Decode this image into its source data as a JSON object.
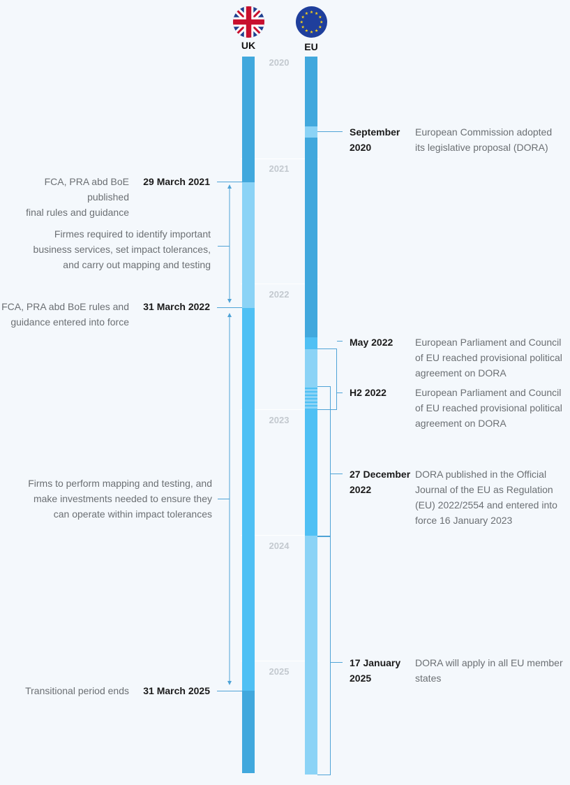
{
  "flags": {
    "uk": {
      "label": "UK",
      "icon": "uk-flag-icon"
    },
    "eu": {
      "label": "EU",
      "icon": "eu-flag-icon"
    }
  },
  "colors": {
    "bar_dark": "#41a8dd",
    "bar_mid": "#4fc0f4",
    "bar_light": "#8bd3f6",
    "connector": "#4fa3d6",
    "text_gray": "#6b6f73",
    "year_gray": "#c3c9cf"
  },
  "years": [
    "2020",
    "2021",
    "2022",
    "2023",
    "2024",
    "2025"
  ],
  "uk_events": [
    {
      "date": "29 March 2021",
      "lines": [
        "FCA, PRA abd BoE published",
        "final rules and guidance"
      ]
    },
    {
      "date": "",
      "lines": [
        "Firmes required to identify important",
        "business services, set impact tolerances,",
        "and carry out mapping and testing"
      ]
    },
    {
      "date": "31 March 2022",
      "lines": [
        "FCA, PRA abd BoE rules and",
        "guidance entered into force"
      ]
    },
    {
      "date": "",
      "lines": [
        "Firms to perform mapping and testing, and",
        "make investments needed to ensure they",
        "can operate within impact tolerances"
      ]
    },
    {
      "date": "31 March 2025",
      "lines": [
        "Transitional period ends"
      ]
    }
  ],
  "eu_events": [
    {
      "date_lines": [
        "September",
        "2020"
      ],
      "lines": [
        "European Commission adopted",
        "its legislative proposal (DORA)"
      ]
    },
    {
      "date_lines": [
        "May 2022"
      ],
      "lines": [
        "European Parliament and Council",
        "of EU reached provisional political",
        "agreement on DORA"
      ]
    },
    {
      "date_lines": [
        "H2 2022"
      ],
      "lines": [
        "European Parliament and Council",
        "of EU reached provisional political",
        "agreement on DORA"
      ]
    },
    {
      "date_lines": [
        "27 December",
        "2022"
      ],
      "lines": [
        "DORA published in the Official",
        "Journal of the EU as Regulation",
        "(EU) 2022/2554 and entered into",
        "force 16 January 2023"
      ]
    },
    {
      "date_lines": [
        "17 January",
        "2025"
      ],
      "lines": [
        "DORA will apply in all EU member",
        "states"
      ]
    }
  ]
}
